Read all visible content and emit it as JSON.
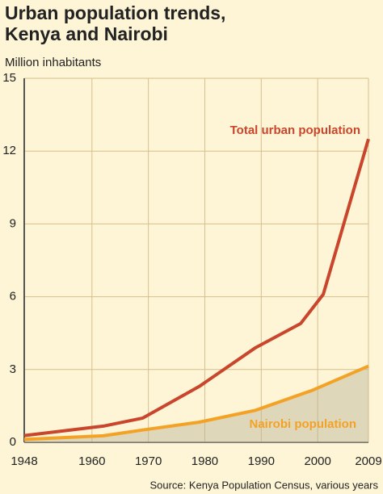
{
  "chart_data": {
    "type": "line",
    "title_lines": [
      "Urban population trends,",
      "Kenya and Nairobi"
    ],
    "y_label": "Million inhabitants",
    "source": "Source: Kenya Population Census, various years",
    "xlim": [
      1948,
      2009
    ],
    "xticks": [
      1948,
      1960,
      1970,
      1980,
      1990,
      2000,
      2009
    ],
    "ylim": [
      0,
      15
    ],
    "yticks": [
      0,
      3,
      6,
      9,
      12,
      15
    ],
    "grid": true,
    "series": [
      {
        "name": "Total urban population",
        "color": "#c9462c",
        "x": [
          1948,
          1962,
          1969,
          1979,
          1989,
          1997,
          2001,
          2009
        ],
        "values": [
          0.28,
          0.67,
          1.0,
          2.3,
          3.9,
          4.9,
          6.1,
          12.5
        ]
      },
      {
        "name": "Nairobi population",
        "color": "#f4a225",
        "area": true,
        "x": [
          1948,
          1962,
          1969,
          1979,
          1989,
          1999,
          2009
        ],
        "values": [
          0.12,
          0.27,
          0.51,
          0.83,
          1.32,
          2.14,
          3.14
        ]
      }
    ]
  }
}
